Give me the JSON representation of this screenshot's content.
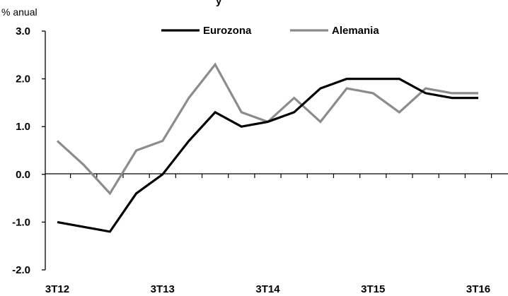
{
  "chart_data": {
    "type": "line",
    "title_fragment": "y",
    "ylabel": "% anual",
    "ylim": [
      -2.0,
      3.0
    ],
    "yticks": [
      "3.0",
      "2.0",
      "1.0",
      "0.0",
      "-1.0",
      "-2.0"
    ],
    "xtick_labels": [
      "3T12",
      "3T13",
      "3T14",
      "3T15",
      "3T16"
    ],
    "x": [
      "3T12",
      "4T12",
      "1T13",
      "2T13",
      "3T13",
      "4T13",
      "1T14",
      "2T14",
      "3T14",
      "4T14",
      "1T15",
      "2T15",
      "3T15",
      "4T15",
      "1T16",
      "2T16",
      "3T16"
    ],
    "series": [
      {
        "name": "Eurozona",
        "color": "#000000",
        "values": [
          -1.0,
          -1.1,
          -1.2,
          -0.4,
          0.0,
          0.7,
          1.3,
          1.0,
          1.1,
          1.3,
          1.8,
          2.0,
          2.0,
          2.0,
          1.7,
          1.6,
          1.6
        ]
      },
      {
        "name": "Alemania",
        "color": "#8c8c8c",
        "values": [
          0.7,
          0.2,
          -0.4,
          0.5,
          0.7,
          1.6,
          2.3,
          1.3,
          1.1,
          1.6,
          1.1,
          1.8,
          1.7,
          1.3,
          1.8,
          1.7,
          1.7
        ]
      }
    ],
    "legend_position": "top",
    "grid": false
  }
}
